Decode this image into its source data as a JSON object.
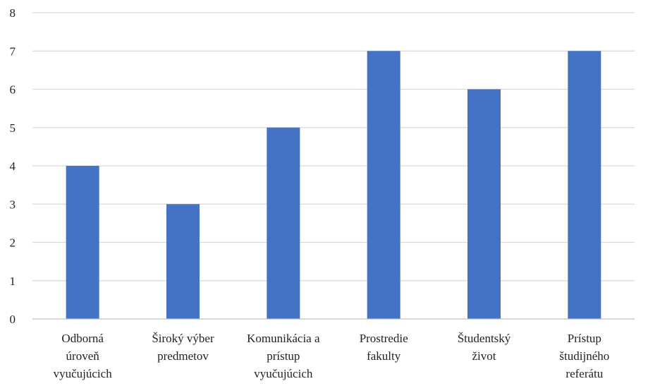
{
  "chart_data": {
    "type": "bar",
    "categories": [
      [
        "Odborná",
        "úroveň",
        "vyučujúcich"
      ],
      [
        "Široký výber",
        "predmetov"
      ],
      [
        "Komunikácia a",
        "prístup",
        "vyučujúcich"
      ],
      [
        "Prostredie",
        "fakulty"
      ],
      [
        "Študentský",
        "život"
      ],
      [
        "Prístup",
        "študijného",
        "referátu"
      ]
    ],
    "values": [
      4,
      3,
      5,
      7,
      6,
      7
    ],
    "yticks": [
      "0",
      "1",
      "2",
      "3",
      "4",
      "5",
      "6",
      "7",
      "8"
    ],
    "ylim": [
      0,
      8
    ],
    "grid": true,
    "legend": "none",
    "bar_color": "#4472C4"
  }
}
